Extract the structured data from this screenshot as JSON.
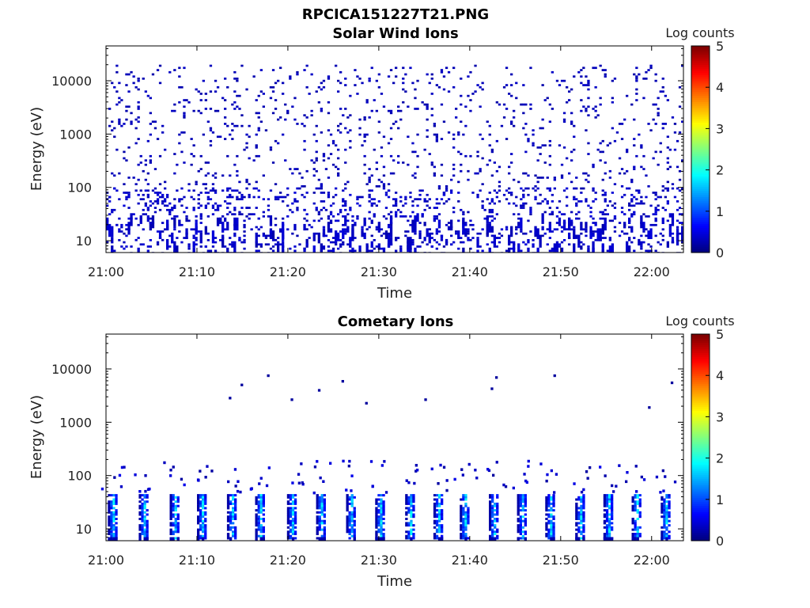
{
  "figure_title": "RPCICA151227T21.PNG",
  "colorbar": {
    "label": "Log counts",
    "ticks": [
      "0",
      "1",
      "2",
      "3",
      "4",
      "5"
    ],
    "range": [
      0,
      5
    ],
    "colormap": "jet"
  },
  "chart_data": [
    {
      "type": "heatmap",
      "title": "Solar Wind Ions",
      "xlabel": "Time",
      "ylabel": "Energy (eV)",
      "x_ticks": [
        "21:00",
        "21:10",
        "21:20",
        "21:30",
        "21:40",
        "21:50",
        "22:00"
      ],
      "y_ticks": [
        "10",
        "100",
        "1000",
        "10000"
      ],
      "y_scale": "log",
      "ylim": [
        6,
        45000
      ],
      "xlim_minutes": [
        0,
        63.5
      ],
      "description_values": "sparse low counts (log counts ~0-0.5) scattered across 6 eV - 20000 eV, denser below 100 eV",
      "bands": [
        {
          "t_start": 0,
          "t_end": 63.5,
          "e_min": 6,
          "e_max": 20000,
          "level": 0.2,
          "density": 0.055
        },
        {
          "t_start": 0,
          "t_end": 63.5,
          "e_min": 6,
          "e_max": 100,
          "level": 0.3,
          "density": 0.12
        }
      ]
    },
    {
      "type": "heatmap",
      "title": "Cometary Ions",
      "xlabel": "Time",
      "ylabel": "Energy (eV)",
      "x_ticks": [
        "21:00",
        "21:10",
        "21:20",
        "21:30",
        "21:40",
        "21:50",
        "22:00"
      ],
      "y_ticks": [
        "10",
        "100",
        "1000",
        "10000"
      ],
      "y_scale": "log",
      "ylim": [
        6,
        45000
      ],
      "xlim_minutes": [
        0,
        63.5
      ],
      "bursts_minutes": [
        0.7,
        4.1,
        7.5,
        10.5,
        13.8,
        16.9,
        20.4,
        23.6,
        26.9,
        30.1,
        33.4,
        36.5,
        39.4,
        42.6,
        45.7,
        48.8,
        52.1,
        55.2,
        58.3,
        61.5
      ],
      "bursts": [
        {
          "e_min": 7,
          "e_max": 45,
          "peak_level": 1.9,
          "width_minutes": 1.0
        }
      ],
      "scattered_high_energy": [
        {
          "t": 13.5,
          "e": 3000
        },
        {
          "t": 14.8,
          "e": 5300
        },
        {
          "t": 17.7,
          "e": 7900
        },
        {
          "t": 20.3,
          "e": 2800
        },
        {
          "t": 23.3,
          "e": 4200
        },
        {
          "t": 25.9,
          "e": 6200
        },
        {
          "t": 28.5,
          "e": 2400
        },
        {
          "t": 35.0,
          "e": 2800
        },
        {
          "t": 42.3,
          "e": 4500
        },
        {
          "t": 42.8,
          "e": 7300
        },
        {
          "t": 49.2,
          "e": 7900
        },
        {
          "t": 59.6,
          "e": 2000
        },
        {
          "t": 62.1,
          "e": 5800
        }
      ]
    }
  ]
}
